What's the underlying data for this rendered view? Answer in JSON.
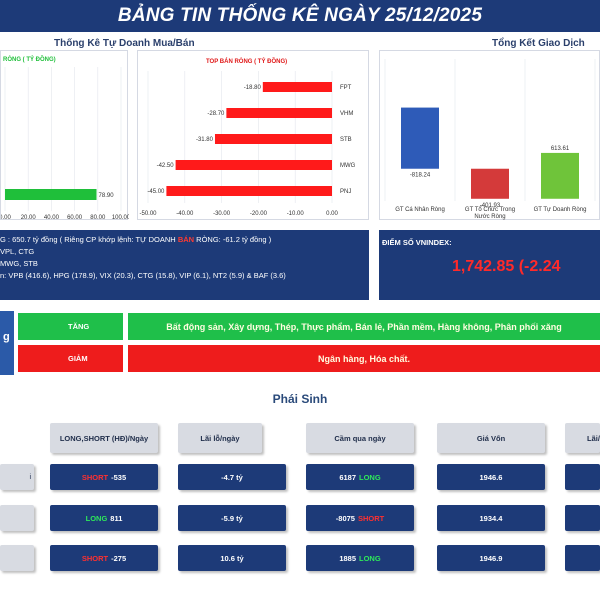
{
  "header": {
    "title": "BẢNG TIN THỐNG KÊ NGÀY 25/12/2025"
  },
  "proprietary_panel": {
    "title": "Thống Kê Tự Doanh Mua/Bán",
    "buy_chart": {
      "label": "RÒNG ( TỶ ĐỒNG)",
      "value_label": "78.90",
      "tick_labels": [
        "0.00",
        "20.00",
        "40.00",
        "60.00",
        "80.00",
        "100.00"
      ]
    },
    "sell_chart": {
      "label": "TOP BÁN RÒNG ( TỶ ĐỒNG)",
      "tick_labels": [
        "-50.00",
        "-40.00",
        "-30.00",
        "-20.00",
        "-10.00",
        "0.00"
      ],
      "value_labels": [
        "-18.80",
        "-28.70",
        "-31.80",
        "-42.50",
        "-45.00"
      ],
      "tickers": [
        "FPT",
        "VHM",
        "STB",
        "MWG",
        "PNJ"
      ]
    }
  },
  "summary_panel": {
    "title": "Tổng Kết Giao Dịch",
    "value_labels": [
      "-818.24",
      "-401.93",
      "613.61"
    ],
    "category_labels": [
      "GT Cá Nhân Ròng",
      "GT Tổ Chức Trong Nước Ròng",
      "GT Tự Doanh Ròng"
    ]
  },
  "info": {
    "line1_a": "G : 650.7 tỷ đồng ( Riêng CP khớp lệnh: TỰ DOANH",
    "line1_hl": "BÁN",
    "line1_b": "RÒNG: -61.2 tỷ đồng )",
    "line2": "VPL, CTG",
    "line3": "MWG, STB",
    "line4": "n: VPB (416.6), HPG (178.9), VIX (20.3), CTG (15.8), VIP (6.1), NT2 (5.9) & BAF (3.6)"
  },
  "vnindex": {
    "label": "ĐIỂM SỐ VNINDEX:",
    "value": "1,742.85 (-2.24"
  },
  "sectors": {
    "up_label": "TĂNG",
    "up_list": "Bất động sản, Xây dựng, Thép, Thực phẩm, Bán lẻ, Phần mềm, Hàng không, Phân phối xăng",
    "down_label": "GIẢM",
    "down_list": "Ngân hàng, Hóa chất.",
    "up_color": "#1fbf4a",
    "down_color": "#ee1c1c"
  },
  "derivatives": {
    "title": "Phái Sinh",
    "headers": [
      "LONG,SHORT (HĐ)/Ngày",
      "Lãi lỗ/ngày",
      "Cầm qua ngày",
      "Giá Vốn",
      "Lãi/"
    ],
    "row_labels": [
      "i",
      "",
      ""
    ],
    "rows": [
      {
        "pos_type": "SHORT",
        "pos_value": "-535",
        "pnl": "-4.7 tỷ",
        "hold_value": "6187",
        "hold_type": "LONG",
        "cost": "1946.6"
      },
      {
        "pos_type": "LONG",
        "pos_value": "811",
        "pnl": "-5.9 tỷ",
        "hold_value": "-8075",
        "hold_type": "SHORT",
        "cost": "1934.4"
      },
      {
        "pos_type": "SHORT",
        "pos_value": "-275",
        "pnl": "10.6 tỷ",
        "hold_value": "1885",
        "hold_type": "LONG",
        "cost": "1946.9"
      }
    ]
  },
  "chart_data": [
    {
      "type": "bar",
      "orientation": "horizontal",
      "title": "RÒNG ( TỶ ĐỒNG)",
      "categories": [
        ""
      ],
      "values": [
        78.9
      ],
      "xlim": [
        0,
        100
      ],
      "color": "#1fbf3a"
    },
    {
      "type": "bar",
      "orientation": "horizontal",
      "title": "TOP BÁN RÒNG ( TỶ ĐỒNG)",
      "categories": [
        "FPT",
        "VHM",
        "STB",
        "MWG",
        "PNJ"
      ],
      "values": [
        -18.8,
        -28.7,
        -31.8,
        -42.5,
        -45.0
      ],
      "xlim": [
        -50,
        0
      ],
      "color": "#ff1a1a"
    },
    {
      "type": "bar",
      "subtype": "waterfall",
      "title": "Tổng Kết Giao Dịch",
      "categories": [
        "GT Cá Nhân Ròng",
        "GT Tổ Chức Trong Nước Ròng",
        "GT Tự Doanh Ròng"
      ],
      "values": [
        -818.24,
        -401.93,
        613.61
      ],
      "colors": [
        "#2e5bb8",
        "#d43a3a",
        "#6fc43a"
      ]
    }
  ]
}
